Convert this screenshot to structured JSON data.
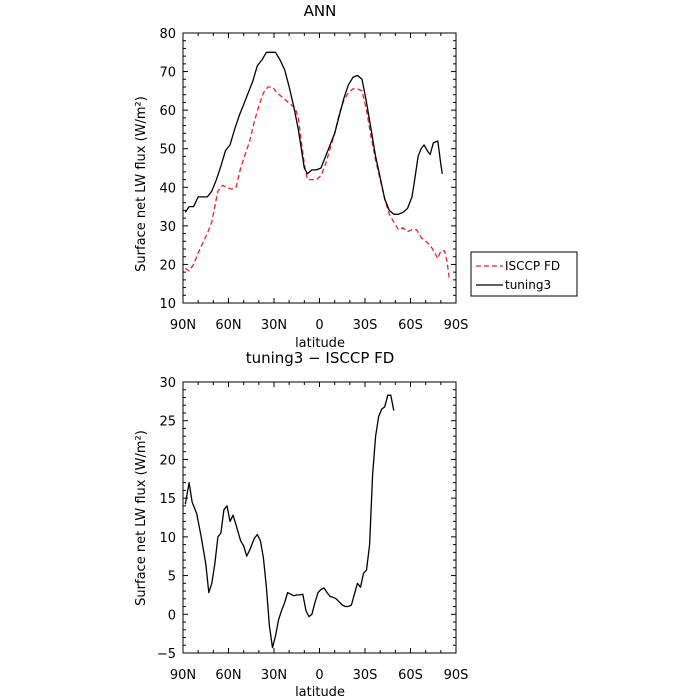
{
  "chart_data": [
    {
      "type": "line",
      "title": "ANN",
      "xlabel": "latitude",
      "ylabel": "Surface net LW flux (W/m²)",
      "xlim": [
        90,
        -90
      ],
      "ylim": [
        10,
        80
      ],
      "xtick_labels": [
        "90N",
        "60N",
        "30N",
        "0",
        "30S",
        "60S",
        "90S"
      ],
      "ytick_labels": [
        "10",
        "20",
        "30",
        "40",
        "50",
        "60",
        "70",
        "80"
      ],
      "legend": {
        "placement": "right",
        "entries": [
          "ISCCP FD",
          "tuning3"
        ]
      },
      "series": [
        {
          "name": "ISCCP FD",
          "color": "#e8212b",
          "style": "dashed",
          "points": [
            [
              88.5,
              19
            ],
            [
              86,
              18.3
            ],
            [
              83,
              20
            ],
            [
              80,
              23
            ],
            [
              77,
              25.5
            ],
            [
              74,
              28
            ],
            [
              71,
              31
            ],
            [
              69,
              35
            ],
            [
              67,
              39
            ],
            [
              64,
              40.5
            ],
            [
              61,
              40
            ],
            [
              58,
              39.5
            ],
            [
              55,
              40
            ],
            [
              52,
              45
            ],
            [
              49,
              48.5
            ],
            [
              46,
              52
            ],
            [
              43,
              57
            ],
            [
              40,
              61
            ],
            [
              37,
              64.5
            ],
            [
              34,
              66
            ],
            [
              31,
              66
            ],
            [
              28,
              64.5
            ],
            [
              25,
              63.5
            ],
            [
              22,
              62.5
            ],
            [
              19,
              61.5
            ],
            [
              16,
              60.5
            ],
            [
              14,
              58
            ],
            [
              12,
              52
            ],
            [
              10,
              46
            ],
            [
              8,
              42
            ],
            [
              5,
              42
            ],
            [
              2,
              42
            ],
            [
              -1,
              43
            ],
            [
              -4,
              46
            ],
            [
              -7,
              50
            ],
            [
              -10,
              54
            ],
            [
              -13,
              59
            ],
            [
              -16,
              62.5
            ],
            [
              -19,
              64.5
            ],
            [
              -22,
              65.5
            ],
            [
              -25,
              65.5
            ],
            [
              -28,
              65
            ],
            [
              -31,
              60
            ],
            [
              -34,
              53
            ],
            [
              -37,
              47
            ],
            [
              -40,
              42
            ],
            [
              -43,
              37
            ],
            [
              -46,
              33
            ],
            [
              -49,
              31
            ],
            [
              -52,
              29
            ],
            [
              -55,
              29.5
            ],
            [
              -58,
              28.5
            ],
            [
              -61,
              29
            ],
            [
              -64,
              29
            ],
            [
              -67,
              27
            ],
            [
              -70,
              26
            ],
            [
              -73,
              25
            ],
            [
              -76,
              23
            ],
            [
              -78,
              21.5
            ],
            [
              -80,
              23.5
            ],
            [
              -82.5,
              23.5
            ],
            [
              -84,
              21
            ],
            [
              -85.5,
              16.5
            ]
          ]
        },
        {
          "name": "tuning3",
          "color": "#000000",
          "style": "solid",
          "points": [
            [
              88.5,
              33.5
            ],
            [
              86,
              35
            ],
            [
              83,
              35
            ],
            [
              80,
              37.5
            ],
            [
              77,
              37.5
            ],
            [
              74,
              37.5
            ],
            [
              71,
              39
            ],
            [
              68,
              42
            ],
            [
              65,
              45.5
            ],
            [
              62,
              49.5
            ],
            [
              59,
              51
            ],
            [
              56,
              55
            ],
            [
              53,
              58.5
            ],
            [
              50,
              61.5
            ],
            [
              47,
              64.5
            ],
            [
              44,
              67.5
            ],
            [
              41,
              71.5
            ],
            [
              38,
              73
            ],
            [
              35,
              75
            ],
            [
              32,
              75
            ],
            [
              29,
              75
            ],
            [
              26,
              73
            ],
            [
              23,
              70.5
            ],
            [
              20,
              66
            ],
            [
              17,
              61
            ],
            [
              14,
              55
            ],
            [
              12,
              50
            ],
            [
              10,
              45
            ],
            [
              8,
              43.5
            ],
            [
              5,
              44.5
            ],
            [
              2,
              44.5
            ],
            [
              -1,
              45
            ],
            [
              -4,
              48
            ],
            [
              -7,
              51
            ],
            [
              -10,
              54
            ],
            [
              -13,
              58.5
            ],
            [
              -16,
              63
            ],
            [
              -19,
              66.5
            ],
            [
              -22,
              68.5
            ],
            [
              -25,
              69
            ],
            [
              -28,
              68
            ],
            [
              -31,
              62
            ],
            [
              -34,
              55
            ],
            [
              -37,
              48
            ],
            [
              -40,
              42.5
            ],
            [
              -43,
              37
            ],
            [
              -46,
              34
            ],
            [
              -49,
              33
            ],
            [
              -52,
              33
            ],
            [
              -55,
              33.5
            ],
            [
              -58,
              34.5
            ],
            [
              -61,
              37.5
            ],
            [
              -63,
              42.5
            ],
            [
              -65,
              48
            ],
            [
              -67,
              50
            ],
            [
              -69,
              51
            ],
            [
              -71,
              49.5
            ],
            [
              -73,
              48.5
            ],
            [
              -75,
              51.5
            ],
            [
              -78,
              52
            ],
            [
              -80,
              46
            ],
            [
              -81,
              43.5
            ]
          ]
        }
      ]
    },
    {
      "type": "line",
      "title": "tuning3 − ISCCP FD",
      "xlabel": "latitude",
      "ylabel": "Surface net LW flux (W/m²)",
      "xlim": [
        90,
        -90
      ],
      "ylim": [
        -5,
        30
      ],
      "xtick_labels": [
        "90N",
        "60N",
        "30N",
        "0",
        "30S",
        "60S",
        "90S"
      ],
      "ytick_labels": [
        "−5",
        "0",
        "5",
        "10",
        "15",
        "20",
        "25",
        "30"
      ],
      "series": [
        {
          "color": "#000000",
          "style": "solid",
          "points": [
            [
              88.5,
              14.2
            ],
            [
              86,
              17
            ],
            [
              84,
              14.5
            ],
            [
              81,
              13
            ],
            [
              78,
              10
            ],
            [
              75,
              6.5
            ],
            [
              73,
              2.8
            ],
            [
              71,
              4
            ],
            [
              69,
              6.5
            ],
            [
              67,
              10
            ],
            [
              65,
              10.5
            ],
            [
              63,
              13.5
            ],
            [
              61,
              14
            ],
            [
              59,
              12
            ],
            [
              57,
              12.8
            ],
            [
              55,
              11.5
            ],
            [
              52,
              9.5
            ],
            [
              50,
              8.8
            ],
            [
              48,
              7.5
            ],
            [
              46,
              8.3
            ],
            [
              43,
              9.8
            ],
            [
              41,
              10.3
            ],
            [
              39,
              9.5
            ],
            [
              37,
              7.3
            ],
            [
              35,
              3.5
            ],
            [
              33,
              -1.5
            ],
            [
              31,
              -4.3
            ],
            [
              29,
              -2.8
            ],
            [
              27,
              -0.7
            ],
            [
              25,
              0.5
            ],
            [
              23,
              1.5
            ],
            [
              21,
              2.8
            ],
            [
              19,
              2.6
            ],
            [
              17,
              2.4
            ],
            [
              15,
              2.5
            ],
            [
              13,
              2.5
            ],
            [
              11,
              2.6
            ],
            [
              9,
              0.5
            ],
            [
              7,
              -0.3
            ],
            [
              5,
              0
            ],
            [
              3,
              1.5
            ],
            [
              1,
              2.8
            ],
            [
              -1,
              3.2
            ],
            [
              -3,
              3.4
            ],
            [
              -5,
              2.8
            ],
            [
              -7,
              2.3
            ],
            [
              -9,
              2.2
            ],
            [
              -11,
              2.0
            ],
            [
              -13,
              1.6
            ],
            [
              -15,
              1.2
            ],
            [
              -17,
              1.0
            ],
            [
              -19,
              1.0
            ],
            [
              -21,
              1.2
            ],
            [
              -23,
              2.6
            ],
            [
              -25,
              4
            ],
            [
              -27,
              3.5
            ],
            [
              -29,
              5.3
            ],
            [
              -31,
              5.7
            ],
            [
              -33,
              9
            ],
            [
              -35,
              18
            ],
            [
              -37,
              23
            ],
            [
              -39,
              25.5
            ],
            [
              -41,
              26.5
            ],
            [
              -43,
              26.8
            ],
            [
              -45,
              28.3
            ],
            [
              -47,
              28.3
            ],
            [
              -49,
              26.3
            ]
          ]
        }
      ]
    }
  ]
}
